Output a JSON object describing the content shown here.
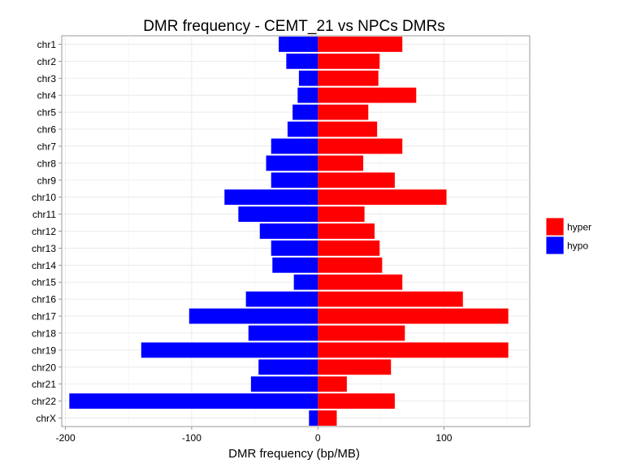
{
  "chart_data": {
    "type": "bar",
    "orientation": "horizontal",
    "title": "DMR frequency - CEMT_21 vs NPCs DMRs",
    "xlabel": "DMR frequency (bp/MB)",
    "ylabel": "",
    "xlim": [
      -203,
      168
    ],
    "xticks": [
      -200,
      -100,
      0,
      100
    ],
    "xtick_labels": [
      "-200",
      "-100",
      "0",
      "100"
    ],
    "grid": true,
    "legend_position": "right",
    "categories": [
      "chr1",
      "chr2",
      "chr3",
      "chr4",
      "chr5",
      "chr6",
      "chr7",
      "chr8",
      "chr9",
      "chr10",
      "chr11",
      "chr12",
      "chr13",
      "chr14",
      "chr15",
      "chr16",
      "chr17",
      "chr18",
      "chr19",
      "chr20",
      "chr21",
      "chr22",
      "chrX"
    ],
    "series": [
      {
        "name": "hyper",
        "color": "#ff0000",
        "values": [
          67,
          49,
          48,
          78,
          40,
          47,
          67,
          36,
          61,
          102,
          37,
          45,
          49,
          51,
          67,
          115,
          151,
          69,
          151,
          58,
          23,
          61,
          15
        ]
      },
      {
        "name": "hypo",
        "color": "#0000ff",
        "values": [
          -31,
          -25,
          -15,
          -16,
          -20,
          -24,
          -37,
          -41,
          -37,
          -74,
          -63,
          -46,
          -37,
          -36,
          -19,
          -57,
          -102,
          -55,
          -140,
          -47,
          -53,
          -197,
          -7
        ]
      }
    ]
  }
}
